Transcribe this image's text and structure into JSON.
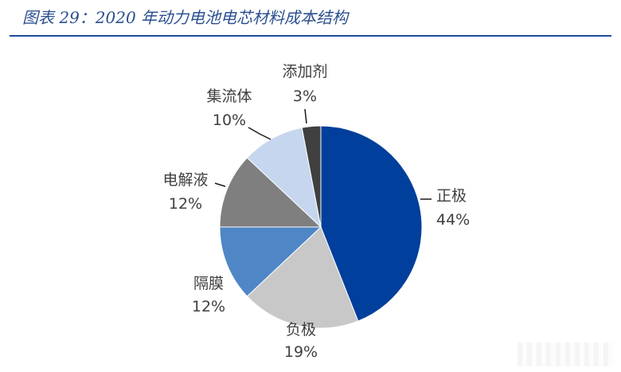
{
  "figure": {
    "title": "图表 29：2020 年动力电池电芯材料成本结构"
  },
  "chart_data": {
    "type": "pie",
    "title": "",
    "start": "top-center, clockwise",
    "slices": [
      {
        "label": "正极",
        "value": 44,
        "display": "44%",
        "color": "#003f9b"
      },
      {
        "label": "负极",
        "value": 19,
        "display": "19%",
        "color": "#c8c8c8"
      },
      {
        "label": "隔膜",
        "value": 12,
        "display": "12%",
        "color": "#4f86c6"
      },
      {
        "label": "电解液",
        "value": 12,
        "display": "12%",
        "color": "#7f7f7f"
      },
      {
        "label": "集流体",
        "value": 10,
        "display": "10%",
        "color": "#c5d6ee"
      },
      {
        "label": "添加剂",
        "value": 3,
        "display": "3%",
        "color": "#404040"
      }
    ]
  }
}
